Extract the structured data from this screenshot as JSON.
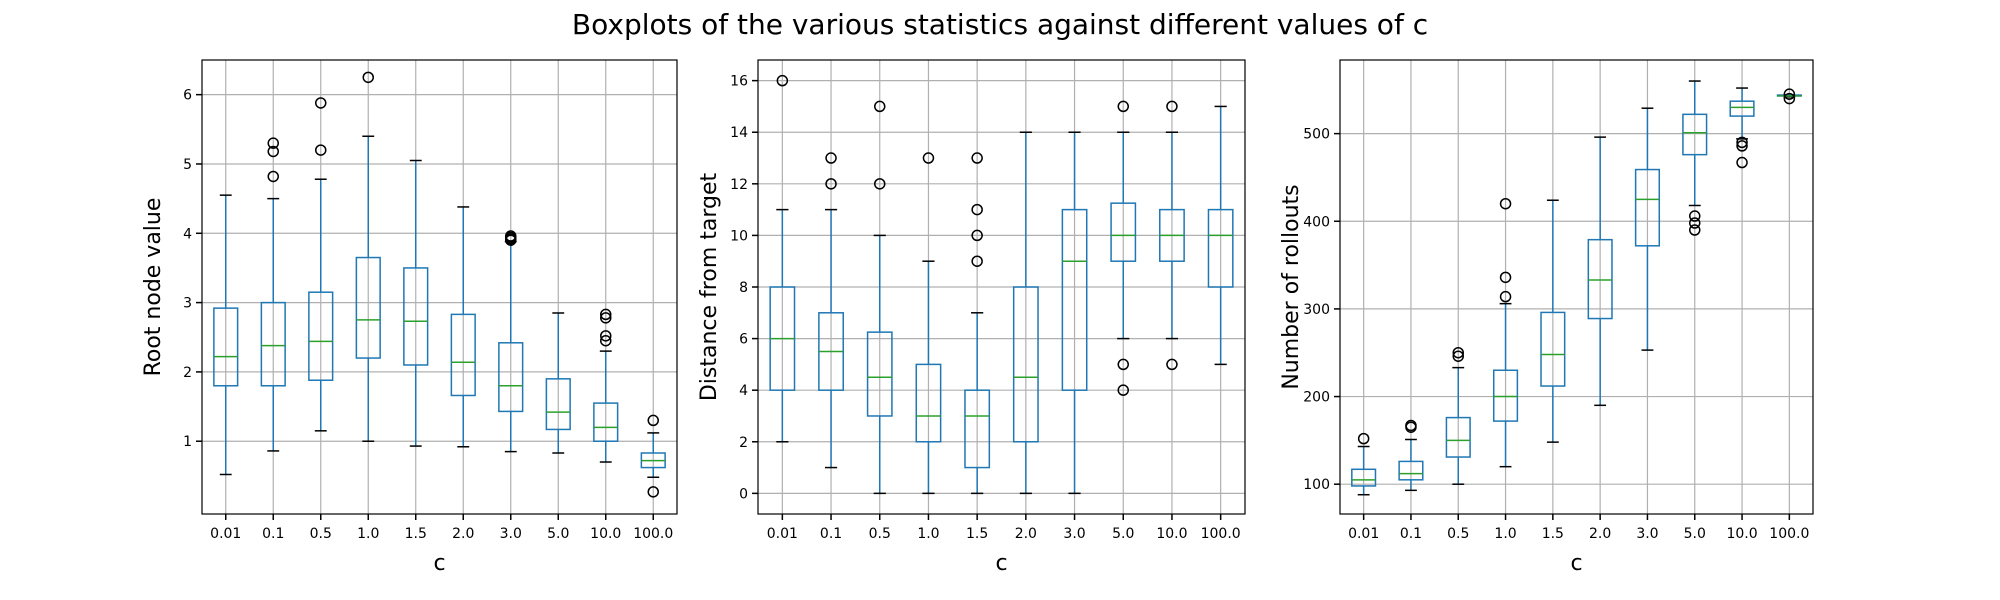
{
  "title": "Boxplots of the various statistics against different values of c",
  "chart_data": [
    {
      "type": "box",
      "xlabel": "c",
      "ylabel": "Root node value",
      "categories": [
        "0.01",
        "0.1",
        "0.5",
        "1.0",
        "1.5",
        "2.0",
        "3.0",
        "5.0",
        "10.0",
        "100.0"
      ],
      "yticks": [
        1,
        2,
        3,
        4,
        5,
        6
      ],
      "ylim": [
        -0.05,
        6.5
      ],
      "grid": true,
      "boxes": [
        {
          "whislo": 0.52,
          "q1": 1.8,
          "med": 2.22,
          "q3": 2.92,
          "whishi": 4.55,
          "fliers": []
        },
        {
          "whislo": 0.86,
          "q1": 1.8,
          "med": 2.38,
          "q3": 3.0,
          "whishi": 4.5,
          "fliers": [
            4.82,
            5.18,
            5.3
          ]
        },
        {
          "whislo": 1.15,
          "q1": 1.88,
          "med": 2.44,
          "q3": 3.15,
          "whishi": 4.78,
          "fliers": [
            5.2,
            5.88
          ]
        },
        {
          "whislo": 1.0,
          "q1": 2.2,
          "med": 2.75,
          "q3": 3.65,
          "whishi": 5.4,
          "fliers": [
            6.25
          ]
        },
        {
          "whislo": 0.93,
          "q1": 2.1,
          "med": 2.73,
          "q3": 3.5,
          "whishi": 5.05,
          "fliers": []
        },
        {
          "whislo": 0.92,
          "q1": 1.66,
          "med": 2.14,
          "q3": 2.83,
          "whishi": 4.38,
          "fliers": []
        },
        {
          "whislo": 0.85,
          "q1": 1.43,
          "med": 1.8,
          "q3": 2.42,
          "whishi": 3.88,
          "fliers": [
            3.9,
            3.92,
            3.94,
            3.96
          ]
        },
        {
          "whislo": 0.83,
          "q1": 1.17,
          "med": 1.42,
          "q3": 1.9,
          "whishi": 2.85,
          "fliers": []
        },
        {
          "whislo": 0.7,
          "q1": 1.0,
          "med": 1.2,
          "q3": 1.55,
          "whishi": 2.3,
          "fliers": [
            2.45,
            2.52,
            2.78,
            2.83
          ]
        },
        {
          "whislo": 0.48,
          "q1": 0.62,
          "med": 0.72,
          "q3": 0.83,
          "whishi": 1.12,
          "fliers": [
            0.27,
            1.3
          ]
        }
      ]
    },
    {
      "type": "box",
      "xlabel": "c",
      "ylabel": "Distance from target",
      "categories": [
        "0.01",
        "0.1",
        "0.5",
        "1.0",
        "1.5",
        "2.0",
        "3.0",
        "5.0",
        "10.0",
        "100.0"
      ],
      "yticks": [
        0,
        2,
        4,
        6,
        8,
        10,
        12,
        14,
        16
      ],
      "ylim": [
        -0.8,
        16.8
      ],
      "grid": true,
      "boxes": [
        {
          "whislo": 2,
          "q1": 4,
          "med": 6,
          "q3": 8,
          "whishi": 11,
          "fliers": [
            16
          ]
        },
        {
          "whislo": 1,
          "q1": 4,
          "med": 5.5,
          "q3": 7,
          "whishi": 11,
          "fliers": [
            12,
            13
          ]
        },
        {
          "whislo": 0,
          "q1": 3,
          "med": 4.5,
          "q3": 6.25,
          "whishi": 10,
          "fliers": [
            12,
            15
          ]
        },
        {
          "whislo": 0,
          "q1": 2,
          "med": 3,
          "q3": 5,
          "whishi": 9,
          "fliers": [
            13
          ]
        },
        {
          "whislo": 0,
          "q1": 1,
          "med": 3,
          "q3": 4,
          "whishi": 7,
          "fliers": [
            9,
            10,
            11,
            13
          ]
        },
        {
          "whislo": 0,
          "q1": 2,
          "med": 4.5,
          "q3": 8,
          "whishi": 14,
          "fliers": []
        },
        {
          "whislo": 0,
          "q1": 4,
          "med": 9,
          "q3": 11,
          "whishi": 14,
          "fliers": []
        },
        {
          "whislo": 6,
          "q1": 9,
          "med": 10,
          "q3": 11.25,
          "whishi": 14,
          "fliers": [
            4,
            5,
            15
          ]
        },
        {
          "whislo": 6,
          "q1": 9,
          "med": 10,
          "q3": 11,
          "whishi": 14,
          "fliers": [
            5,
            15
          ]
        },
        {
          "whislo": 5,
          "q1": 8,
          "med": 10,
          "q3": 11,
          "whishi": 15,
          "fliers": []
        }
      ]
    },
    {
      "type": "box",
      "xlabel": "c",
      "ylabel": "Number of rollouts",
      "categories": [
        "0.01",
        "0.1",
        "0.5",
        "1.0",
        "1.5",
        "2.0",
        "3.0",
        "5.0",
        "10.0",
        "100.0"
      ],
      "yticks": [
        100,
        200,
        300,
        400,
        500
      ],
      "ylim": [
        66,
        584
      ],
      "grid": true,
      "boxes": [
        {
          "whislo": 88,
          "q1": 98,
          "med": 105,
          "q3": 117,
          "whishi": 143,
          "fliers": [
            152
          ]
        },
        {
          "whislo": 93,
          "q1": 105,
          "med": 112,
          "q3": 126,
          "whishi": 151,
          "fliers": [
            165,
            167
          ]
        },
        {
          "whislo": 100,
          "q1": 131,
          "med": 150,
          "q3": 176,
          "whishi": 233,
          "fliers": [
            246,
            250
          ]
        },
        {
          "whislo": 120,
          "q1": 172,
          "med": 200,
          "q3": 230,
          "whishi": 306,
          "fliers": [
            314,
            336,
            420
          ]
        },
        {
          "whislo": 148,
          "q1": 212,
          "med": 248,
          "q3": 296,
          "whishi": 424,
          "fliers": []
        },
        {
          "whislo": 190,
          "q1": 289,
          "med": 333,
          "q3": 379,
          "whishi": 496,
          "fliers": []
        },
        {
          "whislo": 253,
          "q1": 372,
          "med": 425,
          "q3": 459,
          "whishi": 529,
          "fliers": []
        },
        {
          "whislo": 418,
          "q1": 476,
          "med": 501,
          "q3": 522,
          "whishi": 560,
          "fliers": [
            390,
            398,
            406
          ]
        },
        {
          "whislo": 494,
          "q1": 520,
          "med": 530,
          "q3": 537,
          "whishi": 552,
          "fliers": [
            467,
            486,
            490
          ]
        },
        {
          "whislo": 542,
          "q1": 543,
          "med": 543,
          "q3": 544,
          "whishi": 544,
          "fliers": [
            540,
            545
          ]
        }
      ]
    }
  ]
}
